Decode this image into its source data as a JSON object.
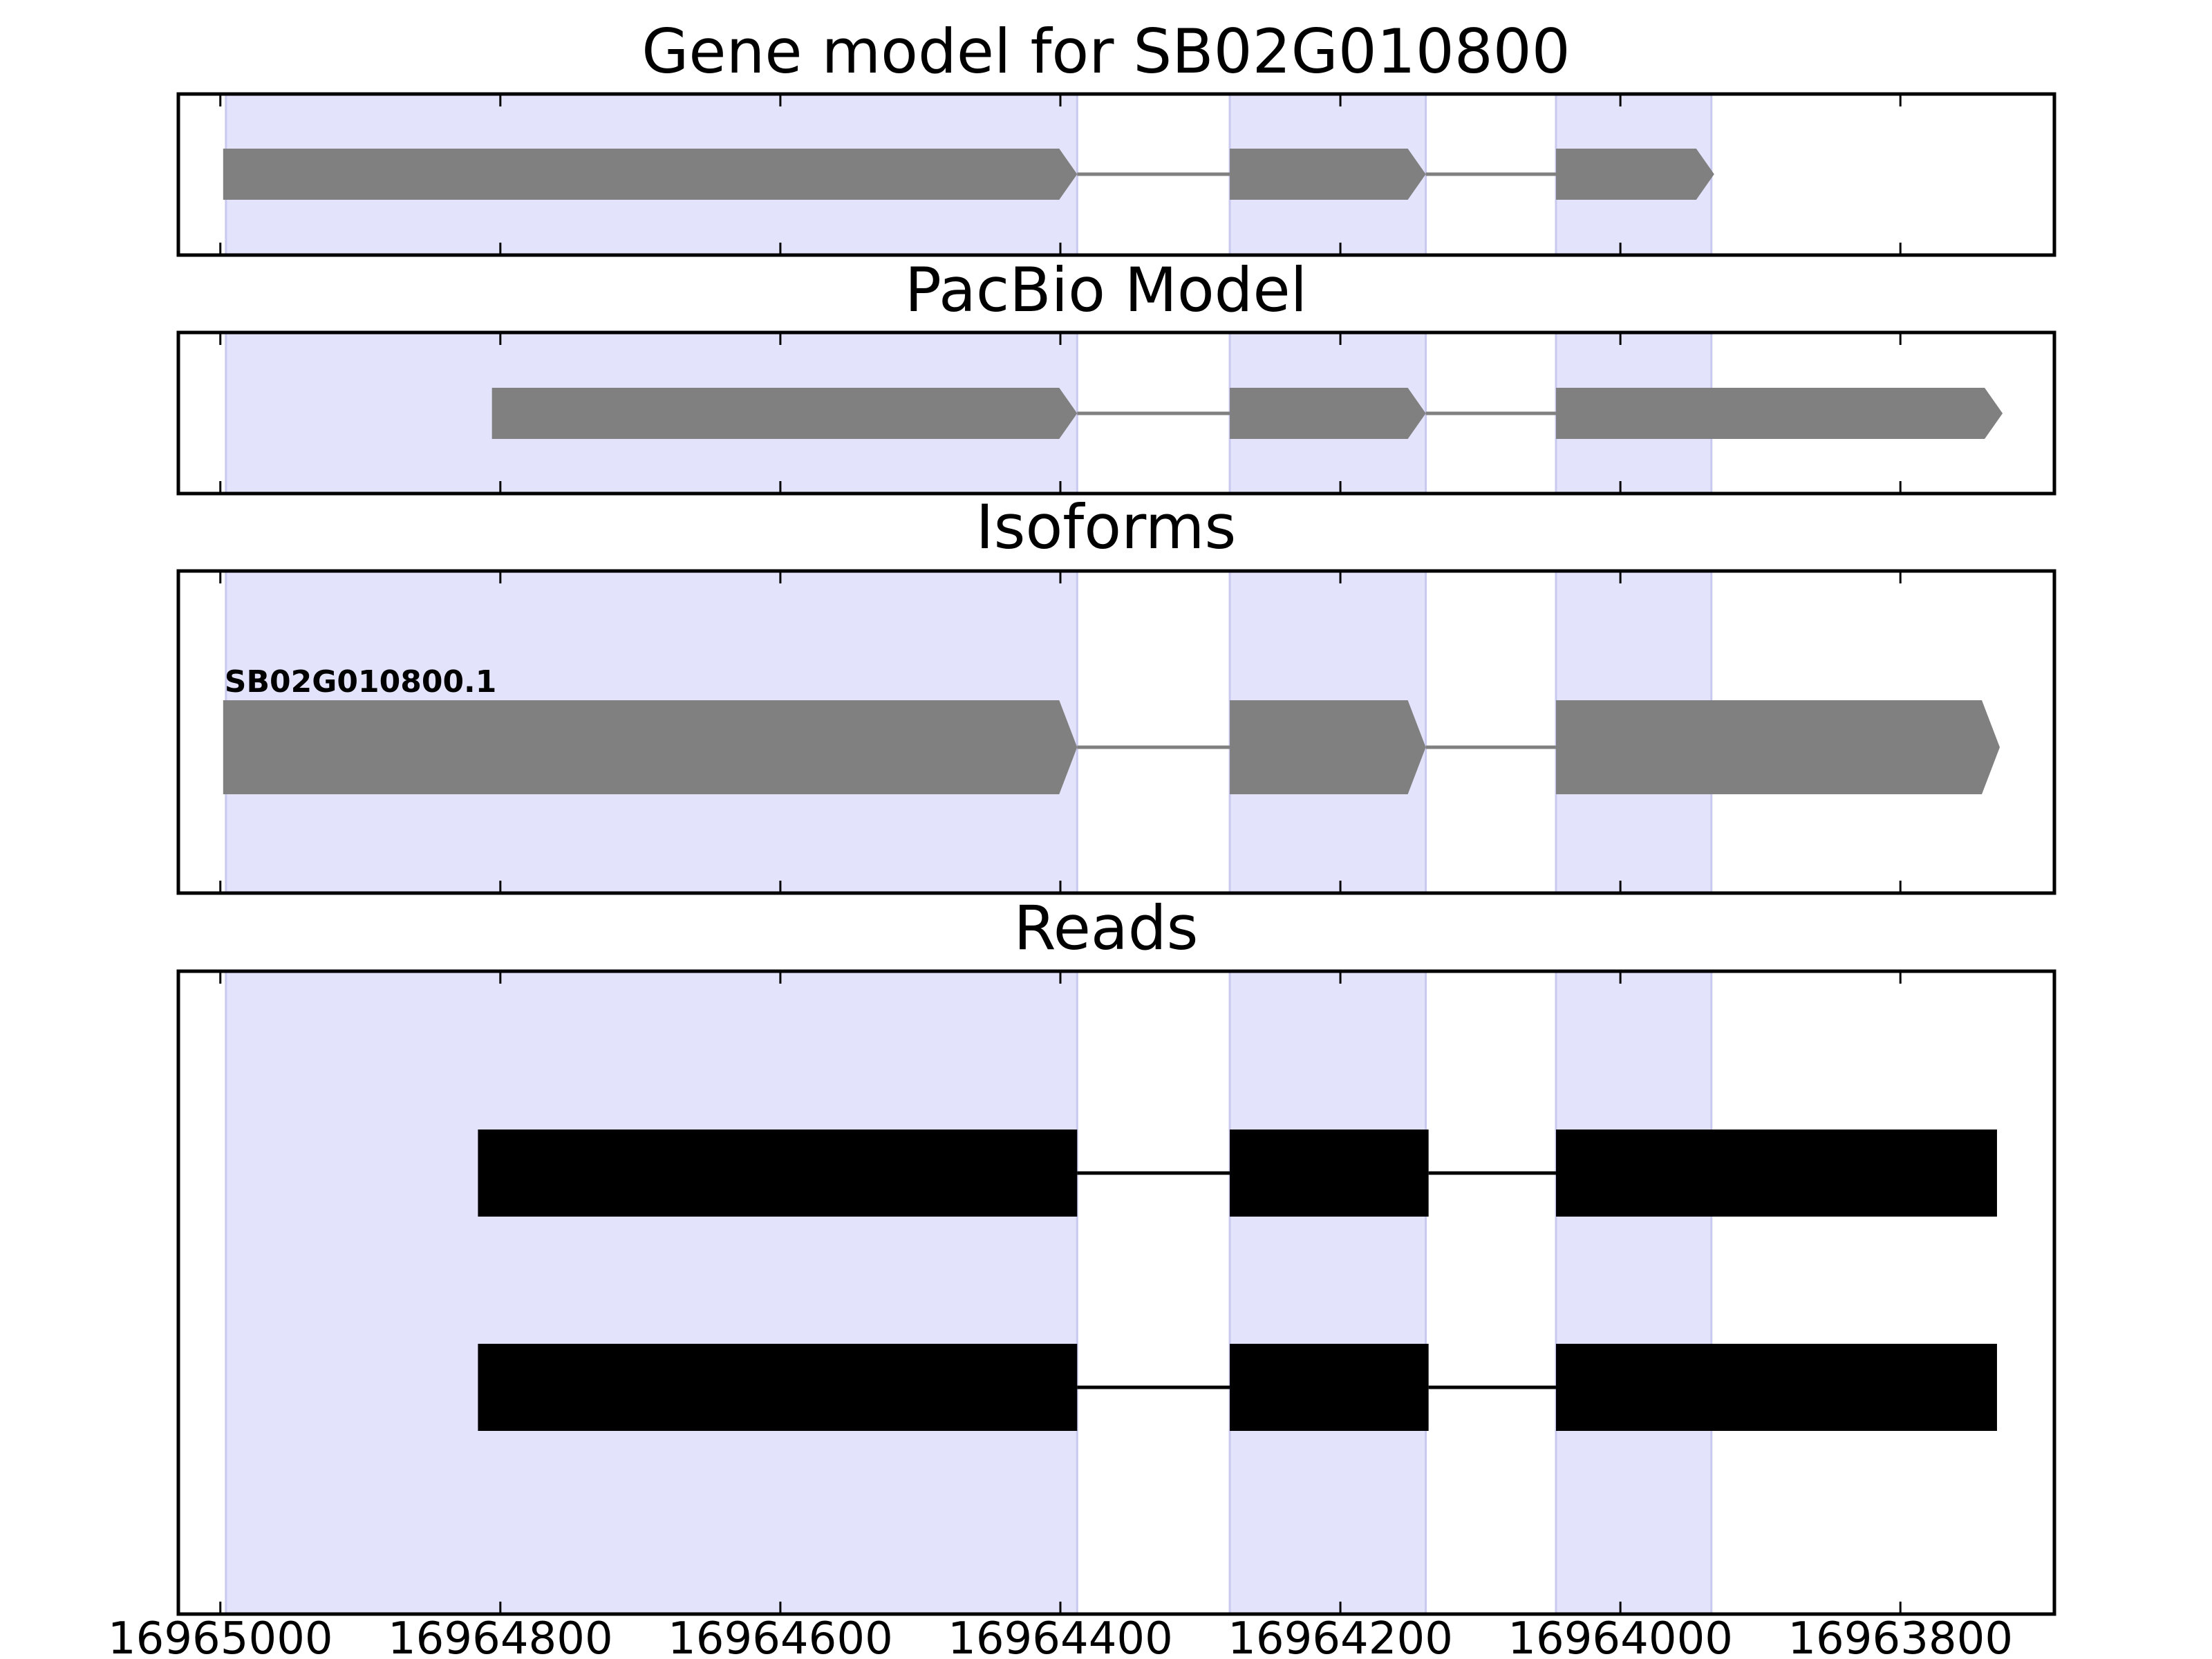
{
  "chart_data": {
    "type": "gene-structure",
    "xlim": [
      16965030,
      16963690
    ],
    "x_reversed": true,
    "xticks": [
      16965000,
      16964800,
      16964600,
      16964400,
      16964200,
      16964000,
      16963800
    ],
    "xtick_labels": [
      "16965000",
      "16964800",
      "16964600",
      "16964400",
      "16964200",
      "16964000",
      "16963800"
    ],
    "highlight_color": "#e3e3fc",
    "exon_color_model": "#808080",
    "exon_color_reads": "#000000",
    "highlight_regions": [
      [
        16964996,
        16964388
      ],
      [
        16964279,
        16964139
      ],
      [
        16964046,
        16963935
      ]
    ],
    "panels": [
      {
        "title": "Gene model for SB02G010800",
        "tracks": [
          {
            "label": "",
            "style": "arrow",
            "exons": [
              [
                16964998,
                16964388
              ],
              [
                16964279,
                16964139
              ],
              [
                16964046,
                16963933
              ]
            ]
          }
        ]
      },
      {
        "title": "PacBio Model",
        "tracks": [
          {
            "label": "",
            "style": "arrow",
            "exons": [
              [
                16964806,
                16964388
              ],
              [
                16964279,
                16964139
              ],
              [
                16964046,
                16963727
              ]
            ]
          }
        ]
      },
      {
        "title": "Isoforms",
        "tracks": [
          {
            "label": "SB02G010800.1",
            "style": "arrow",
            "exons": [
              [
                16964998,
                16964388
              ],
              [
                16964279,
                16964139
              ],
              [
                16964046,
                16963729
              ]
            ]
          }
        ]
      },
      {
        "title": "Reads",
        "tracks": [
          {
            "label": "",
            "style": "box",
            "exons": [
              [
                16964816,
                16964388
              ],
              [
                16964279,
                16964137
              ],
              [
                16964046,
                16963731
              ]
            ]
          },
          {
            "label": "",
            "style": "box",
            "exons": [
              [
                16964816,
                16964388
              ],
              [
                16964279,
                16964137
              ],
              [
                16964046,
                16963731
              ]
            ]
          }
        ]
      }
    ]
  }
}
